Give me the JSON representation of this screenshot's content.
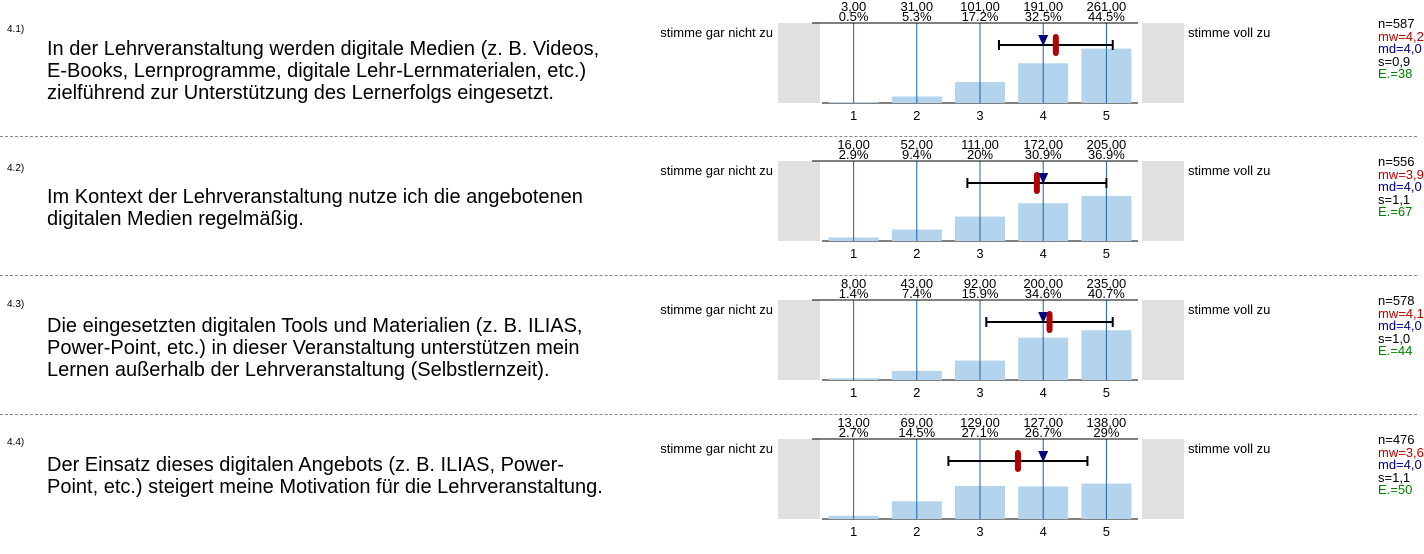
{
  "scale": {
    "left_label": "stimme gar nicht zu",
    "right_label": "stimme voll zu",
    "ticks": [
      "1",
      "2",
      "3",
      "4",
      "5"
    ]
  },
  "colors": {
    "bar": "#b4d4ee",
    "gridline": "#1f5fa8",
    "side_box": "#e0e0e0",
    "mean_marker": "#b00000",
    "median_marker": "#000080",
    "sd_line": "#000000"
  },
  "chart_data": [
    {
      "type": "bar",
      "id": "4.1)",
      "title": "In der Lehrveranstaltung werden digitale Medien (z. B. Videos, E-Books, Lernprogramme, digitale Lehr-Lernmaterialen, etc.) zielführend zur Unterstützung des Lernerfolgs eingesetzt.",
      "categories": [
        "1",
        "2",
        "3",
        "4",
        "5"
      ],
      "counts": [
        "3,00",
        "31,00",
        "101,00",
        "191,00",
        "261,00"
      ],
      "percents_label": [
        "0.5%",
        "5.3%",
        "17.2%",
        "32.5%",
        "44.5%"
      ],
      "values": [
        0.5,
        5.3,
        17.2,
        32.5,
        44.5
      ],
      "mean": 4.2,
      "median": 4.0,
      "sd_low": 3.3,
      "sd_high": 5.1,
      "stats": {
        "n": "n=587",
        "mw": "mw=4,2",
        "md": "md=4,0",
        "s": "s=0,9",
        "e": "E.=38"
      }
    },
    {
      "type": "bar",
      "id": "4.2)",
      "title": "Im Kontext der Lehrveranstaltung nutze ich die angebotenen digitalen Medien regelmäßig.",
      "categories": [
        "1",
        "2",
        "3",
        "4",
        "5"
      ],
      "counts": [
        "16,00",
        "52,00",
        "111,00",
        "172,00",
        "205,00"
      ],
      "percents_label": [
        "2.9%",
        "9.4%",
        "20%",
        "30.9%",
        "36.9%"
      ],
      "values": [
        2.9,
        9.4,
        20,
        30.9,
        36.9
      ],
      "mean": 3.9,
      "median": 4.0,
      "sd_low": 2.8,
      "sd_high": 5.0,
      "stats": {
        "n": "n=556",
        "mw": "mw=3,9",
        "md": "md=4,0",
        "s": "s=1,1",
        "e": "E.=67"
      }
    },
    {
      "type": "bar",
      "id": "4.3)",
      "title": "Die eingesetzten digitalen Tools und Materialien (z. B. ILIAS, Power-Point, etc.) in dieser Veranstaltung unterstützen mein Lernen außerhalb der Lehrveranstaltung (Selbstlernzeit).",
      "categories": [
        "1",
        "2",
        "3",
        "4",
        "5"
      ],
      "counts": [
        "8,00",
        "43,00",
        "92,00",
        "200,00",
        "235,00"
      ],
      "percents_label": [
        "1.4%",
        "7.4%",
        "15.9%",
        "34.6%",
        "40.7%"
      ],
      "values": [
        1.4,
        7.4,
        15.9,
        34.6,
        40.7
      ],
      "mean": 4.1,
      "median": 4.0,
      "sd_low": 3.1,
      "sd_high": 5.1,
      "stats": {
        "n": "n=578",
        "mw": "mw=4,1",
        "md": "md=4,0",
        "s": "s=1,0",
        "e": "E.=44"
      }
    },
    {
      "type": "bar",
      "id": "4.4)",
      "title": "Der Einsatz dieses digitalen Angebots (z. B. ILIAS, Power-Point, etc.) steigert meine Motivation für die Lehrveranstaltung.",
      "categories": [
        "1",
        "2",
        "3",
        "4",
        "5"
      ],
      "counts": [
        "13,00",
        "69,00",
        "129,00",
        "127,00",
        "138,00"
      ],
      "percents_label": [
        "2.7%",
        "14.5%",
        "27.1%",
        "26.7%",
        "29%"
      ],
      "values": [
        2.7,
        14.5,
        27.1,
        26.7,
        29
      ],
      "mean": 3.6,
      "median": 4.0,
      "sd_low": 2.5,
      "sd_high": 4.7,
      "stats": {
        "n": "n=476",
        "mw": "mw=3,6",
        "md": "md=4,0",
        "s": "s=1,1",
        "e": "E.=50"
      }
    }
  ]
}
